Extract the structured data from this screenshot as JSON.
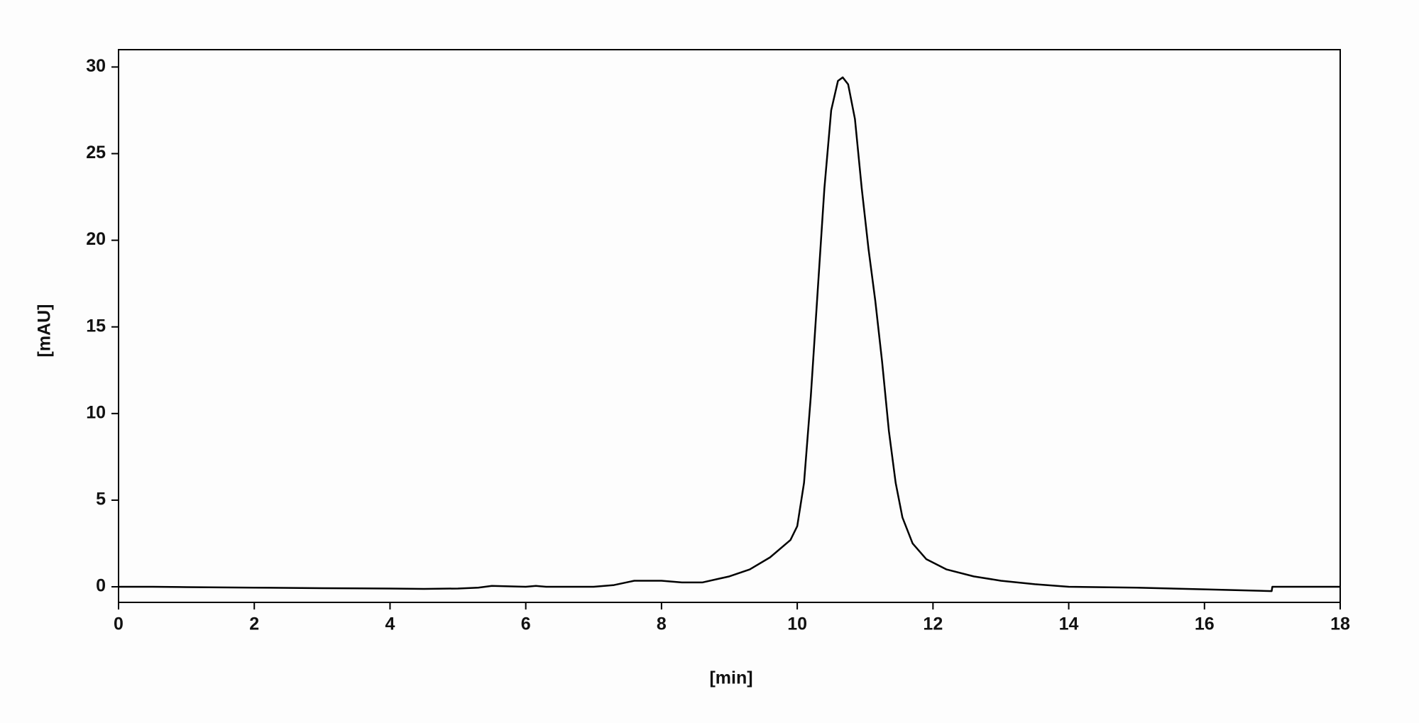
{
  "chart_data": {
    "type": "line",
    "x_label": "[min]",
    "y_label": "[mAU]",
    "series": [
      {
        "color": "#000000",
        "x": [
          0,
          0.5,
          1,
          2,
          3,
          4,
          4.5,
          5,
          5.3,
          5.5,
          5.8,
          6,
          6.15,
          6.3,
          7,
          7.3,
          7.6,
          8,
          8.3,
          8.6,
          9,
          9.3,
          9.6,
          9.9,
          10.0,
          10.1,
          10.2,
          10.3,
          10.4,
          10.5,
          10.6,
          10.67,
          10.75,
          10.85,
          10.95,
          11.05,
          11.15,
          11.25,
          11.35,
          11.45,
          11.55,
          11.7,
          11.9,
          12.2,
          12.6,
          13,
          13.5,
          14,
          15,
          16,
          16.99,
          17.0,
          18
        ],
        "values": [
          0,
          0,
          -0.02,
          -0.05,
          -0.08,
          -0.1,
          -0.12,
          -0.1,
          -0.05,
          0.05,
          0.02,
          0,
          0.05,
          0,
          0,
          0.1,
          0.35,
          0.35,
          0.25,
          0.25,
          0.6,
          1.0,
          1.7,
          2.7,
          3.5,
          6,
          11,
          17,
          23,
          27.5,
          29.2,
          29.4,
          29,
          27,
          23,
          19.5,
          16.5,
          13,
          9,
          6,
          4,
          2.5,
          1.6,
          1.0,
          0.6,
          0.35,
          0.15,
          0,
          -0.05,
          -0.15,
          -0.25,
          0,
          0
        ]
      }
    ],
    "xlim": [
      0,
      18
    ],
    "xticks": [
      0,
      2,
      4,
      6,
      8,
      10,
      12,
      14,
      16,
      18
    ],
    "ylim": [
      -0.9,
      31
    ],
    "yticks": [
      0,
      5,
      10,
      15,
      20,
      25,
      30
    ]
  }
}
